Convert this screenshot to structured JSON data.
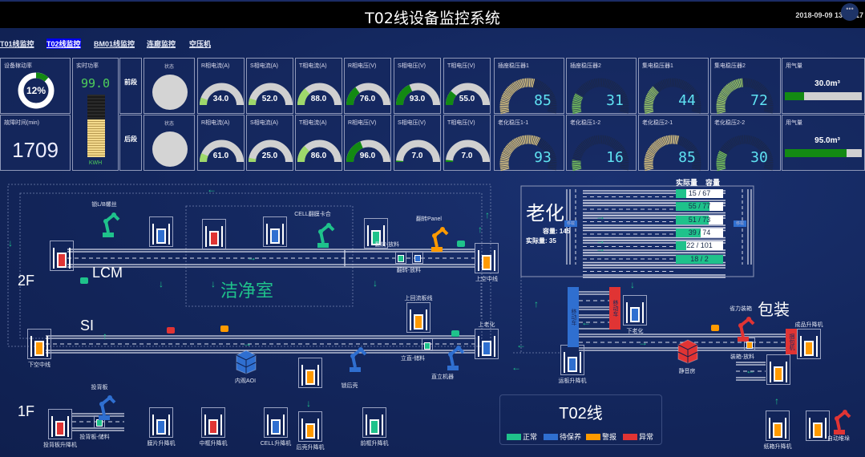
{
  "header": {
    "title": "T02线设备监控系统",
    "datetime": "2018-09-09 13:36:17"
  },
  "nav": [
    {
      "label": "T01线监控",
      "active": false
    },
    {
      "label": "T02线监控",
      "active": true
    },
    {
      "label": "BM01线监控",
      "active": false
    },
    {
      "label": "连廊监控",
      "active": false
    },
    {
      "label": "空压机",
      "active": false
    }
  ],
  "kpi": {
    "util_label": "设备稼动率",
    "util_value": "12%",
    "util_fraction": 0.12,
    "fault_label": "故障时间(min)",
    "fault_value": "1709",
    "power_label": "实时功率",
    "power_value": "99.0",
    "power_unit": "KWH",
    "power_fill": 0.6
  },
  "sections": [
    {
      "name": "前段",
      "status_label": "状态",
      "gauges": [
        {
          "label": "R相电流(A)",
          "value": "34.0",
          "fill": 0.11,
          "color": "#9ed86b"
        },
        {
          "label": "S相电流(A)",
          "value": "52.0",
          "fill": 0.1,
          "color": "#9ed86b"
        },
        {
          "label": "T相电流(A)",
          "value": "88.0",
          "fill": 0.27,
          "color": "#9ed86b"
        },
        {
          "label": "R相电压(V)",
          "value": "76.0",
          "fill": 0.3,
          "color": "#138a13"
        },
        {
          "label": "S相电压(V)",
          "value": "93.0",
          "fill": 0.37,
          "color": "#138a13"
        },
        {
          "label": "T相电压(V)",
          "value": "55.0",
          "fill": 0.22,
          "color": "#138a13"
        }
      ],
      "regulators": [
        {
          "label": "插座稳压器1",
          "value": "85",
          "color": "#e8cf86"
        },
        {
          "label": "插座稳压器2",
          "value": "31",
          "color": "#7fcf5f"
        },
        {
          "label": "集电稳压器1",
          "value": "44",
          "color": "#a6d86e"
        },
        {
          "label": "集电稳压器2",
          "value": "72",
          "color": "#a6d86e"
        }
      ],
      "gas": {
        "label": "用气量",
        "value": "30.0m³",
        "fill": 0.25
      }
    },
    {
      "name": "后段",
      "status_label": "状态",
      "gauges": [
        {
          "label": "R相电流(A)",
          "value": "61.0",
          "fill": 0.13,
          "color": "#9ed86b"
        },
        {
          "label": "S相电流(A)",
          "value": "25.0",
          "fill": 0.06,
          "color": "#9ed86b"
        },
        {
          "label": "T相电流(A)",
          "value": "86.0",
          "fill": 0.26,
          "color": "#9ed86b"
        },
        {
          "label": "R相电压(V)",
          "value": "96.0",
          "fill": 0.38,
          "color": "#138a13"
        },
        {
          "label": "S相电压(V)",
          "value": "7.0",
          "fill": 0.02,
          "color": "#138a13"
        },
        {
          "label": "T相电压(V)",
          "value": "7.0",
          "fill": 0.03,
          "color": "#138a13"
        }
      ],
      "regulators": [
        {
          "label": "老化稳压1-1",
          "value": "93",
          "color": "#e8cf86"
        },
        {
          "label": "老化稳压1-2",
          "value": "16",
          "color": "#7fcf5f"
        },
        {
          "label": "老化稳压2-1",
          "value": "85",
          "color": "#e8cf86"
        },
        {
          "label": "老化稳压2-2",
          "value": "30",
          "color": "#7fcf5f"
        }
      ],
      "gas": {
        "label": "用气量",
        "value": "95.0m³",
        "fill": 0.8
      }
    }
  ],
  "floor": {
    "areas": {
      "f2": "2F",
      "lcm": "LCM",
      "clean": "洁净室",
      "si": "SI",
      "f1": "1F",
      "pack": "包装"
    },
    "aging": {
      "title": "老化",
      "capacity_label": "容量:",
      "capacity": "145",
      "actual_label": "实际量:",
      "actual": "35",
      "col_actual": "实际量",
      "col_capacity": "容量",
      "transfer": "移载",
      "lanes": [
        {
          "text": "15 / 67",
          "fill": 0.22
        },
        {
          "text": "55 / 77",
          "fill": 0.71
        },
        {
          "text": "51 / 73",
          "fill": 0.7
        },
        {
          "text": "39 / 74",
          "fill": 0.53
        },
        {
          "text": "22 / 101",
          "fill": 0.22
        },
        {
          "text": "18 / 2",
          "fill": 1
        }
      ]
    },
    "stations": [
      {
        "label": "",
        "status": "abnormal"
      },
      {
        "label": "",
        "status": "maintenance"
      },
      {
        "label": "",
        "status": "abnormal"
      },
      {
        "label": "",
        "status": "maintenance"
      },
      {
        "label": "",
        "status": "normal"
      },
      {
        "label": "上空中线",
        "status": "warning"
      },
      {
        "label": "上回流板线",
        "status": "warning"
      },
      {
        "label": "上老化",
        "status": "maintenance"
      },
      {
        "label": "下空中线",
        "status": "warning"
      },
      {
        "label": "",
        "status": "warning"
      },
      {
        "label": "投背板升降机",
        "status": "abnormal"
      },
      {
        "label": "膜片升降机",
        "status": "maintenance"
      },
      {
        "label": "中框升降机",
        "status": "abnormal"
      },
      {
        "label": "CELL升降机",
        "status": "maintenance"
      },
      {
        "label": "后壳升降机",
        "status": "warning"
      },
      {
        "label": "前框升降机",
        "status": "normal"
      },
      {
        "label": "下老化",
        "status": "maintenance"
      },
      {
        "label": "运板升降机",
        "status": "maintenance"
      },
      {
        "label": "成品升降机",
        "status": "warning"
      },
      {
        "label": "",
        "status": "warning"
      },
      {
        "label": "纸箱升降机",
        "status": "warning"
      },
      {
        "label": "",
        "status": "warning"
      }
    ],
    "minis": [
      {
        "label": "翻转-放料",
        "status": "normal"
      },
      {
        "label": "翻转-放料",
        "status": "maintenance"
      },
      {
        "label": "投背板-储料",
        "status": "normal"
      },
      {
        "label": "立直-储料",
        "status": "normal"
      },
      {
        "label": "装箱-放料",
        "status": "warning"
      }
    ],
    "robots": [
      {
        "label": "锁L/B螺丝",
        "status": "normal"
      },
      {
        "label": "CELL翻膜卡合",
        "status": "normal"
      },
      {
        "label": "翻转Panel",
        "status": "warning"
      },
      {
        "label": "锁后壳",
        "status": "maintenance"
      },
      {
        "label": "直立机器",
        "status": "maintenance"
      },
      {
        "label": "投背板",
        "status": "maintenance"
      },
      {
        "label": "省力装箱",
        "status": "abnormal"
      },
      {
        "label": "自动堆垛",
        "status": "abnormal"
      }
    ],
    "cabinets": [
      {
        "label": "内观AOI",
        "status": "maintenance"
      },
      {
        "label": "静音房",
        "status": "abnormal"
      }
    ],
    "movers": [
      {
        "label": "移动车",
        "status": "maintenance"
      },
      {
        "label": "移动车",
        "status": "abnormal"
      },
      {
        "label": "捆包机",
        "status": "abnormal"
      }
    ]
  },
  "legend": {
    "title": "T02线",
    "items": [
      {
        "key": "normal",
        "label": "正常",
        "color": "#1fc28b"
      },
      {
        "key": "maintenance",
        "label": "待保养",
        "color": "#2f6fd0"
      },
      {
        "key": "warning",
        "label": "警报",
        "color": "#ff9a00"
      },
      {
        "key": "abnormal",
        "label": "异常",
        "color": "#e03434"
      }
    ]
  }
}
